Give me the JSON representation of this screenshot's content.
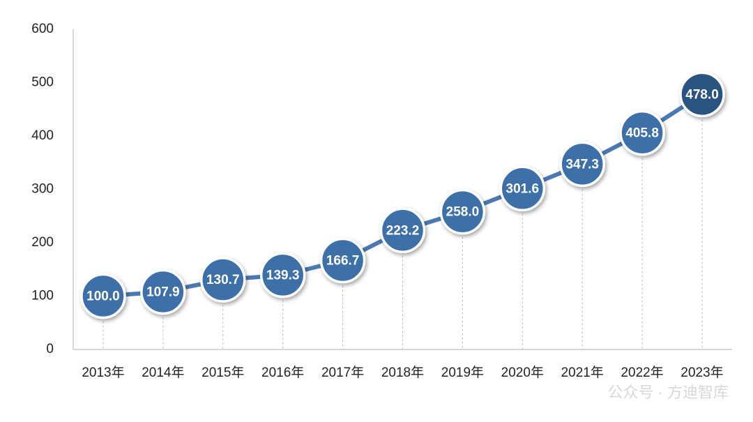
{
  "chart_data": {
    "type": "line",
    "categories": [
      "2013年",
      "2014年",
      "2015年",
      "2016年",
      "2017年",
      "2018年",
      "2019年",
      "2020年",
      "2021年",
      "2022年",
      "2023年"
    ],
    "series": [
      {
        "color": "#4a78b0",
        "values": [
          100.0,
          107.9,
          130.7,
          139.3,
          166.7,
          223.2,
          258.0,
          301.6,
          347.3,
          405.8,
          478.0
        ],
        "value_labels": [
          "100.0",
          "107.9",
          "130.7",
          "139.3",
          "166.7",
          "223.2",
          "258.0",
          "301.6",
          "347.3",
          "405.8",
          "478.0"
        ],
        "marker_colors": [
          "#3e6fa9",
          "#3e6fa9",
          "#3e6fa9",
          "#3e6fa9",
          "#3e6fa9",
          "#3e6fa9",
          "#3e6fa9",
          "#3e6fa9",
          "#3e6fa9",
          "#3e6fa9",
          "#2c5282"
        ]
      }
    ],
    "ylim": [
      0,
      600
    ],
    "yticks": [
      0,
      100,
      200,
      300,
      400,
      500,
      600
    ],
    "grid": false,
    "watermark": "公众号 · 方迪智库"
  }
}
